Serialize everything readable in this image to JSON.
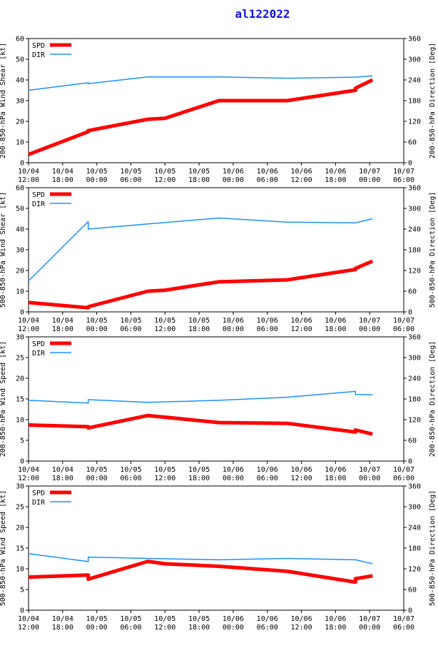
{
  "title": "al122022",
  "colors": {
    "spd": "#ff0000",
    "dir": "#1e90ff",
    "title": "#1010e6",
    "axis": "#000000"
  },
  "x_tick_labels": [
    [
      "10/04",
      "12:00"
    ],
    [
      "10/04",
      "18:00"
    ],
    [
      "10/05",
      "00:00"
    ],
    [
      "10/05",
      "06:00"
    ],
    [
      "10/05",
      "12:00"
    ],
    [
      "10/05",
      "18:00"
    ],
    [
      "10/06",
      "00:00"
    ],
    [
      "10/06",
      "06:00"
    ],
    [
      "10/06",
      "12:00"
    ],
    [
      "10/06",
      "18:00"
    ],
    [
      "10/07",
      "00:00"
    ],
    [
      "10/07",
      "06:00"
    ]
  ],
  "legend": {
    "spd": "SPD",
    "dir": "DIR"
  },
  "chart_data": [
    {
      "type": "line",
      "ylabel": "200-850-hPa Wind Shear [kt]",
      "y2label": "200-850-hPa Direction [Deg]",
      "xlim": [
        0,
        66
      ],
      "ylim": [
        0,
        60
      ],
      "y2lim": [
        0,
        360
      ],
      "yticks": [
        0,
        10,
        20,
        30,
        40,
        50,
        60
      ],
      "y2ticks": [
        0,
        60,
        120,
        180,
        240,
        300,
        360
      ],
      "series": [
        {
          "name": "SPD",
          "axis": "left",
          "x": [
            0,
            10.5,
            10.5,
            21,
            24,
            33.5,
            45.5,
            57.5,
            57.5,
            60.5
          ],
          "y": [
            4,
            15,
            15.5,
            21,
            21.5,
            30,
            30,
            35,
            36,
            40
          ]
        },
        {
          "name": "DIR",
          "axis": "right",
          "x": [
            0,
            10.5,
            10.5,
            21,
            33.5,
            45.5,
            57.5,
            60.5
          ],
          "y": [
            210,
            232,
            229,
            249,
            249,
            245,
            248,
            252
          ]
        }
      ]
    },
    {
      "type": "line",
      "ylabel": "500-850-hPa Wind Shear [kt]",
      "y2label": "500-850-hPa Direction [Deg]",
      "xlim": [
        0,
        66
      ],
      "ylim": [
        0,
        60
      ],
      "y2lim": [
        0,
        360
      ],
      "yticks": [
        0,
        10,
        20,
        30,
        40,
        50,
        60
      ],
      "y2ticks": [
        0,
        60,
        120,
        180,
        240,
        300,
        360
      ],
      "series": [
        {
          "name": "SPD",
          "axis": "left",
          "x": [
            0,
            10.5,
            10.5,
            21,
            24,
            33.5,
            45.5,
            57.5,
            57.5,
            60.5
          ],
          "y": [
            4.5,
            2,
            2.5,
            10,
            10.5,
            14.5,
            15.5,
            20.5,
            21,
            24.5
          ]
        },
        {
          "name": "DIR",
          "axis": "right",
          "x": [
            0,
            10.5,
            10.5,
            21,
            33.5,
            45.5,
            57.5,
            60.5
          ],
          "y": [
            90,
            262,
            240,
            255,
            272,
            260,
            258,
            270
          ]
        }
      ]
    },
    {
      "type": "line",
      "ylabel": "200-850-hPa Wind Speed [kt]",
      "y2label": "200-850-hPa Direction [Deg]",
      "xlim": [
        0,
        66
      ],
      "ylim": [
        0,
        30
      ],
      "y2lim": [
        0,
        360
      ],
      "yticks": [
        0,
        5,
        10,
        15,
        20,
        25,
        30
      ],
      "y2ticks": [
        0,
        60,
        120,
        180,
        240,
        300,
        360
      ],
      "series": [
        {
          "name": "SPD",
          "axis": "left",
          "x": [
            0,
            10.5,
            10.5,
            21,
            33.5,
            45.5,
            57.5,
            57.5,
            60.5
          ],
          "y": [
            8.7,
            8.3,
            8.0,
            11.0,
            9.3,
            9.1,
            7.0,
            7.5,
            6.5
          ]
        },
        {
          "name": "DIR",
          "axis": "right",
          "x": [
            0,
            10.5,
            10.5,
            21,
            33.5,
            45.5,
            57.5,
            57.5,
            60.5
          ],
          "y": [
            176,
            168,
            178,
            170,
            176,
            185,
            202,
            193,
            192
          ]
        }
      ]
    },
    {
      "type": "line",
      "ylabel": "500-850-hPa Wind Speed [kt]",
      "y2label": "500-850-hPa Direction [Deg]",
      "xlim": [
        0,
        66
      ],
      "ylim": [
        0,
        30
      ],
      "y2lim": [
        0,
        360
      ],
      "yticks": [
        0,
        5,
        10,
        15,
        20,
        25,
        30
      ],
      "y2ticks": [
        0,
        60,
        120,
        180,
        240,
        300,
        360
      ],
      "series": [
        {
          "name": "SPD",
          "axis": "left",
          "x": [
            0,
            10.5,
            10.5,
            21,
            24,
            33.5,
            45.5,
            57.5,
            57.5,
            60.5
          ],
          "y": [
            8.0,
            8.5,
            7.5,
            11.8,
            11.2,
            10.6,
            9.4,
            6.8,
            7.6,
            8.3
          ]
        },
        {
          "name": "DIR",
          "axis": "right",
          "x": [
            0,
            10.5,
            10.5,
            21,
            33.5,
            45.5,
            57.5,
            60.5
          ],
          "y": [
            164,
            141,
            154,
            150,
            146,
            150,
            146,
            135
          ]
        }
      ]
    }
  ]
}
